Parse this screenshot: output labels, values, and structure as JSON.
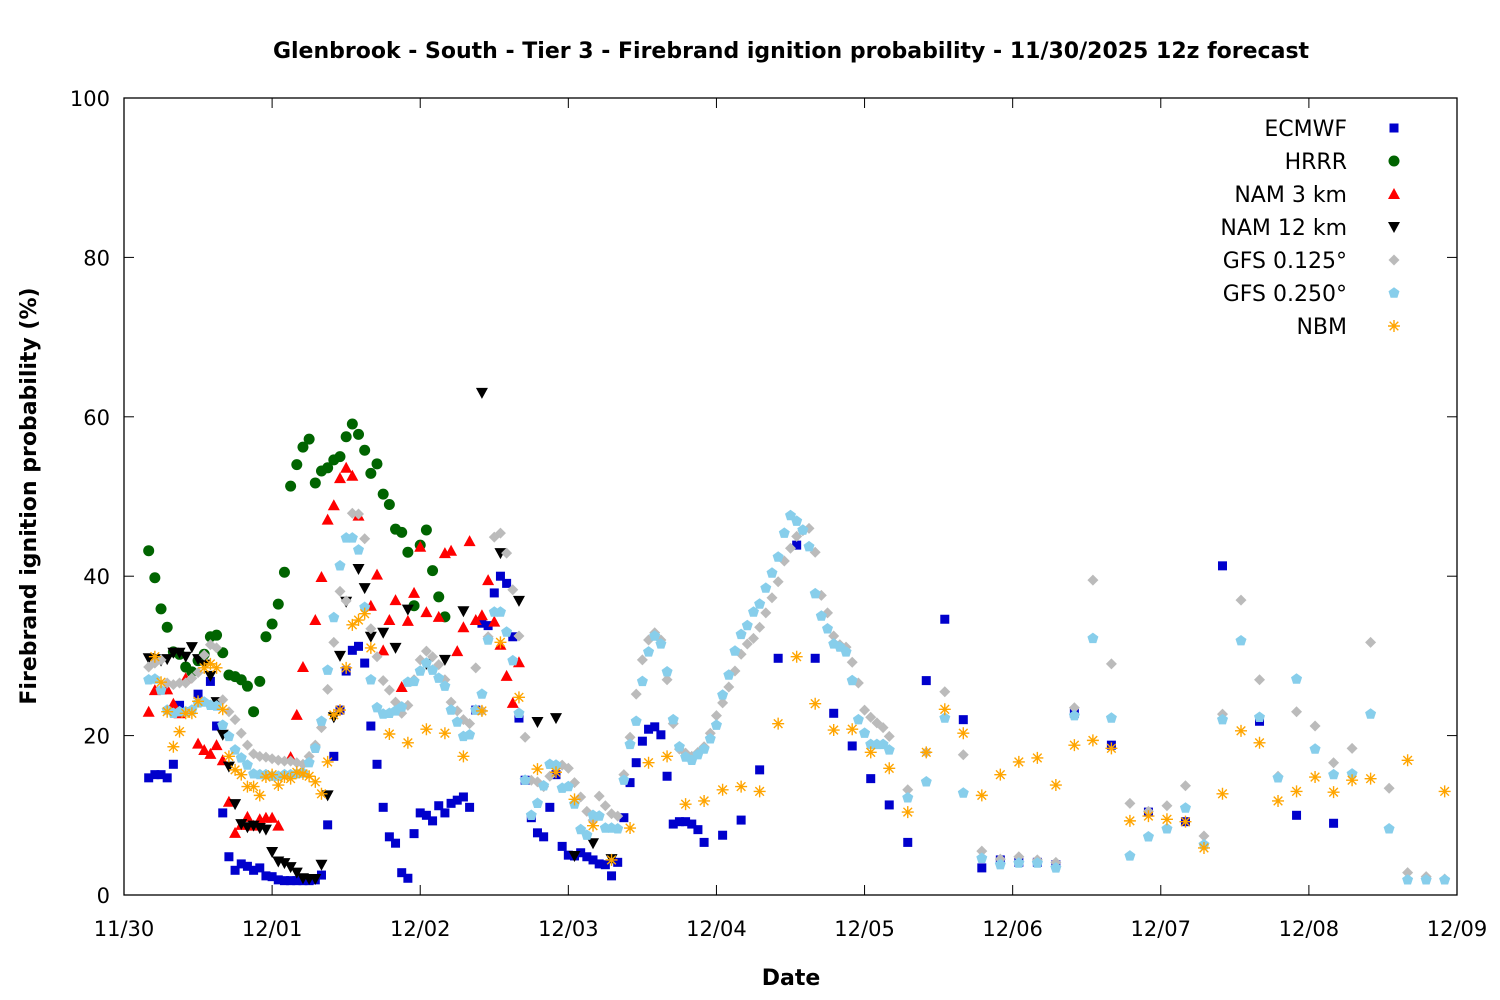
{
  "chart_data": {
    "type": "scatter",
    "title": "Glenbrook - South - Tier 3 - Firebrand ignition probability - 11/30/2025 12z forecast",
    "xlabel": "Date",
    "ylabel": "Firebrand ignition probability (%)",
    "x_units": "hours since 11/30 00",
    "xlim": [
      0,
      216
    ],
    "ylim": [
      0,
      100
    ],
    "xticks": [
      {
        "v": 0,
        "label": "11/30"
      },
      {
        "v": 24,
        "label": "12/01"
      },
      {
        "v": 48,
        "label": "12/02"
      },
      {
        "v": 72,
        "label": "12/03"
      },
      {
        "v": 96,
        "label": "12/04"
      },
      {
        "v": 120,
        "label": "12/05"
      },
      {
        "v": 144,
        "label": "12/06"
      },
      {
        "v": 168,
        "label": "12/07"
      },
      {
        "v": 192,
        "label": "12/08"
      },
      {
        "v": 216,
        "label": "12/09"
      }
    ],
    "yticks": [
      0,
      20,
      40,
      60,
      80,
      100
    ],
    "legend_position": "top-right",
    "series": [
      {
        "name": "ECMWF",
        "color": "#0000cc",
        "marker": "square",
        "segments": [
          {
            "start": 4,
            "step": 1,
            "y": [
              14.7,
              15.1,
              15.1,
              14.7,
              16.4,
              23.8,
              23,
              null,
              25.2,
              null,
              26.8,
              21.2,
              10.3,
              4.8,
              3.1,
              3.9,
              3.6,
              3.1,
              3.4,
              2.4,
              2.3,
              1.9,
              1.8,
              1.8,
              1.8,
              1.8,
              1.8,
              1.9,
              2.5,
              8.8,
              17.4,
              23.2,
              28.1,
              30.7,
              31.2,
              29.1,
              21.2,
              16.4,
              11,
              7.3,
              6.5,
              2.8,
              2.1,
              7.7,
              10.3,
              10,
              9.3,
              11.2,
              10.3,
              11.5,
              11.9,
              12.3,
              11,
              23.2,
              34.1,
              33.8,
              37.9,
              40,
              39.1,
              32.4,
              22.2,
              14.4,
              9.7,
              7.8,
              7.3,
              11,
              15.1,
              6.1,
              5,
              4.9,
              5.3,
              4.8,
              4.4,
              3.9,
              3.8,
              2.4,
              4.1,
              9.7,
              14.1,
              16.6,
              19.3,
              20.8,
              21.1,
              20.1,
              14.9,
              8.9,
              9.2,
              9.2,
              8.9,
              8.2,
              6.6
            ]
          },
          {
            "start": 97,
            "step": 3,
            "y": [
              7.5,
              9.4,
              15.7,
              29.7,
              43.9,
              29.7,
              22.8,
              18.7,
              14.6,
              11.3,
              6.6,
              26.9,
              34.6,
              22,
              3.4,
              4.4,
              4.1,
              4.1,
              3.8,
              22.8
            ]
          },
          {
            "start": 160,
            "step": 6,
            "y": [
              18.8,
              10.4,
              9.2,
              41.3,
              21.8,
              10,
              9
            ]
          }
        ]
      },
      {
        "name": "HRRR",
        "color": "#006400",
        "marker": "circle",
        "segments": [
          {
            "start": 4,
            "step": 1,
            "y": [
              43.2,
              39.8,
              35.9,
              33.6,
              30.5,
              30.2,
              28.6,
              28,
              29.4,
              30.2,
              32.4,
              32.6,
              30.4,
              27.6,
              27.4,
              27,
              26.2,
              23,
              26.8,
              32.4,
              34,
              36.5,
              40.5,
              51.3,
              54,
              56.2,
              57.2,
              51.7,
              53.2,
              53.6,
              54.6,
              55,
              57.5,
              59.1,
              57.8,
              55.8,
              52.9,
              54.1,
              50.3,
              49,
              45.9,
              45.5,
              43,
              36.3,
              43.9,
              45.8,
              40.7,
              37.4,
              34.9
            ]
          }
        ]
      },
      {
        "name": "NAM 3 km",
        "color": "#ff0000",
        "marker": "triangle-up",
        "segments": [
          {
            "start": 4,
            "step": 1,
            "y": [
              23,
              25.7,
              25.8,
              25.8,
              24,
              22.8,
              27.2,
              null,
              19,
              18.2,
              17.7,
              18.8,
              16.9,
              11.7,
              7.8,
              8.8,
              9.8,
              8.7,
              9.5,
              9.7,
              9.7,
              8.7,
              null,
              17.3,
              22.6,
              28.6,
              null,
              34.5,
              39.9,
              47.1,
              48.9,
              52.3,
              53.6,
              52.6,
              47.6,
              null,
              36.3,
              40.2,
              30.7,
              34.5,
              37,
              26.1,
              34.4,
              37.9,
              43.7,
              35.5,
              null,
              34.9,
              42.9,
              43.2,
              30.6,
              33.6,
              44.4,
              34.5,
              35.1,
              39.5,
              34.3,
              31.4,
              27.5,
              24.1,
              29.2
            ]
          }
        ]
      },
      {
        "name": "NAM 12 km",
        "color": "#000000",
        "marker": "triangle-down",
        "segments": [
          {
            "start": 4,
            "step": 1,
            "y": [
              29.7,
              29.6,
              29.4,
              29.6,
              30.4,
              30.4,
              29.9,
              31.1,
              29.6,
              28.9,
              27.5,
              24.2,
              20.1,
              16.1,
              11.4,
              8.9,
              8.5,
              8.7,
              8.4,
              8.2,
              5.4,
              4.2,
              4,
              3.5,
              2.8,
              2.1,
              2,
              2,
              3.8,
              12.5,
              22.3,
              30,
              36.8
            ]
          },
          {
            "start": 38,
            "step": 1,
            "y": [
              40.9,
              38.5,
              32.4,
              null,
              32.9,
              null,
              31,
              null,
              35.8
            ]
          },
          {
            "start": 49,
            "step": 3,
            "y": [
              29,
              29.5,
              35.6,
              63,
              42.9,
              36.9,
              21.7,
              22.2,
              4.9,
              6.5,
              4.5
            ]
          }
        ]
      },
      {
        "name": "GFS 0.125°",
        "color": "#bbbbbb",
        "marker": "diamond",
        "segments": [
          {
            "start": 4,
            "step": 1,
            "y": [
              28.6,
              29.1,
              29.5,
              26.6,
              26.4,
              26.6,
              26.6,
              27.2,
              27.9,
              30.1,
              31.4,
              31,
              24.5,
              23,
              22,
              20.3,
              18.8,
              17.7,
              17.4,
              17.3,
              17.1,
              16.9,
              16.8,
              16.8,
              16.6,
              16.4,
              17.4,
              18.8,
              21,
              25.8,
              31.7,
              38.1,
              36.9,
              47.9,
              47.8,
              44.7,
              33.4,
              29.9,
              26.9,
              25.7,
              24.2,
              22.8,
              23.8,
              27,
              29.5,
              30.6,
              29.9,
              28.9,
              27,
              24.2,
              23.1,
              22,
              21.5,
              28.5,
              23.1,
              32.4,
              44.9,
              45.4,
              42.9,
              38.3,
              32.5,
              19.8,
              14.4,
              14.2,
              13.6,
              14.9,
              16.2,
              16.3,
              15.9,
              14.1,
              12.3,
              10.5,
              9.4,
              12.4,
              11.2,
              10.2,
              9.9,
              15.1,
              19.8,
              25.2,
              29.5,
              32,
              32.9,
              32,
              27,
              21.5,
              18.3,
              17.8,
              17.4,
              17.9,
              18.6,
              20.3,
              22.5,
              24.1,
              26.1,
              28.1,
              30.2,
              31.5,
              32.2,
              33.6,
              35.4,
              37.3,
              39.3,
              41.9,
              43.5,
              45,
              45.7,
              46,
              43,
              37.6,
              35.4,
              32.5,
              31.4,
              31.1,
              29.2,
              26.6,
              23.2,
              22.3,
              21.6,
              21,
              19.9
            ]
          },
          {
            "start": 127,
            "step": 3,
            "y": [
              13.2,
              17.9,
              25.5,
              17.6,
              5.5,
              4.5,
              4.8,
              4.4,
              4.1,
              23.5,
              39.5,
              29,
              11.5,
              10.5,
              11.2,
              13.7,
              7.4,
              22.7,
              37,
              27,
              14.9,
              23,
              21.2,
              16.6,
              18.4,
              31.7,
              13.4,
              2.8,
              2.3,
              2
            ]
          }
        ]
      },
      {
        "name": "GFS 0.250°",
        "color": "#87ceeb",
        "marker": "pentagon",
        "segments": [
          {
            "start": 4,
            "step": 1,
            "y": [
              27,
              27.1,
              25.7,
              23.2,
              22.8,
              23,
              23,
              23.2,
              24.1,
              24.2,
              23.8,
              23.7,
              21.3,
              19.9,
              18.2,
              17.2,
              16.3,
              15.2,
              15.1,
              15.1,
              14.9,
              14.9,
              15.1,
              15.1,
              15.2,
              15.3,
              16.6,
              18.4,
              21.8,
              28.2,
              34.8,
              41.3,
              44.8,
              44.8,
              43.3,
              36.1,
              27,
              23.5,
              22.7,
              22.8,
              23.1,
              23.6,
              26.7,
              26.8,
              28.1,
              29.1,
              28.2,
              27.2,
              26.2,
              23.2,
              21.7,
              19.9,
              20.1,
              23.2,
              25.2,
              32,
              35.5,
              35.5,
              33,
              29.4,
              22.8,
              14.4,
              10,
              11.5,
              13.7,
              16.4,
              16.3,
              13.4,
              13.6,
              11.4,
              8.2,
              7.5,
              10,
              9.9,
              8.4,
              8.4,
              8.3,
              14.4,
              18.9,
              21.8,
              26.8,
              30.5,
              32.5,
              31.5,
              28,
              22,
              18.6,
              17.3,
              16.9,
              17.6,
              18.3,
              19.6,
              21.3,
              25.1,
              27.6,
              30.6,
              32.7,
              33.8,
              35.5,
              36.5,
              38.5,
              40.4,
              42.4,
              45.4,
              47.6,
              46.9,
              45.8,
              43.7,
              37.8,
              35,
              33.4,
              31.5,
              31.1,
              30.5,
              26.9,
              22,
              20.3,
              18.9,
              18.9,
              18.9,
              18.2
            ]
          },
          {
            "start": 127,
            "step": 3,
            "y": [
              12.2,
              14.2,
              22.2,
              12.8,
              4.6,
              3.8,
              4,
              4,
              3.4,
              22.5,
              32.2,
              22.2,
              4.9,
              7.3,
              8.3,
              10.9,
              6.3,
              22,
              31.9,
              22.3,
              14.7,
              27.1,
              18.3,
              15.1,
              15.2,
              22.7,
              8.3,
              1.9,
              1.9,
              1.9
            ]
          }
        ]
      },
      {
        "name": "NBM",
        "color": "#ffa500",
        "marker": "asterisk",
        "segments": [
          {
            "start": 5,
            "step": 1,
            "y": [
              29.9,
              26.7,
              23,
              18.6,
              20.5,
              22.8,
              22.8,
              24.3,
              28.5,
              29,
              28.5,
              23.3,
              17.4,
              15.7,
              15.1,
              13.6,
              13.6,
              12.5,
              14.8,
              15.1,
              13.8,
              14.8,
              14.6,
              15.4,
              15.2,
              14.9,
              14.2,
              12.7,
              16.7,
              22.6,
              23.2,
              28.5,
              33.9,
              34.5,
              35.3,
              31
            ]
          },
          {
            "start": 43,
            "step": 3,
            "y": [
              20.2,
              19.1,
              20.8,
              20.3,
              17.4,
              23.1,
              31.7,
              24.8,
              15.8,
              15.4,
              12,
              8.7,
              4.4,
              8.4,
              16.6,
              17.4,
              11.4,
              11.8,
              13.2,
              13.6,
              13,
              21.5,
              29.9,
              24,
              20.7,
              20.8,
              17.9,
              15.9,
              10.4,
              17.9,
              23.3,
              20.3,
              12.5,
              15.1,
              16.7,
              17.2,
              13.8,
              18.8,
              19.4,
              18.4,
              9.3,
              9.9,
              9.5,
              9.2,
              5.9,
              12.7,
              20.6,
              19.1,
              11.8,
              13,
              14.8,
              12.9,
              14.4,
              14.6,
              null,
              16.9,
              null,
              13
            ]
          }
        ]
      }
    ]
  }
}
